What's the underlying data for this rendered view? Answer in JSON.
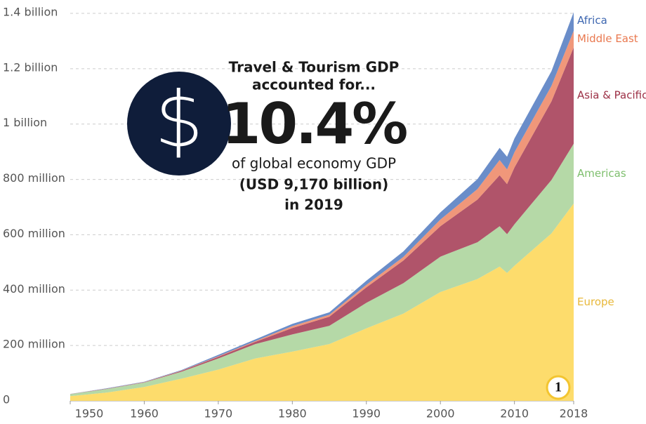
{
  "chart_data": {
    "type": "stacked_area",
    "x": [
      1950,
      1955,
      1960,
      1965,
      1970,
      1975,
      1980,
      1985,
      1990,
      1995,
      2000,
      2005,
      2008,
      2009,
      2010,
      2015,
      2018
    ],
    "series": [
      {
        "name": "Europe",
        "color": "#fddc6c",
        "label_color": "#e8b83a",
        "values": [
          17000000,
          30000000,
          50000000,
          80000000,
          113000000,
          153000000,
          178000000,
          205000000,
          262000000,
          315000000,
          393000000,
          440000000,
          485000000,
          462000000,
          488000000,
          605000000,
          713000000
        ]
      },
      {
        "name": "Americas",
        "color": "#b5d9a7",
        "label_color": "#7fbf6e",
        "values": [
          7000000,
          13000000,
          16000000,
          25000000,
          40000000,
          52000000,
          62000000,
          66000000,
          92000000,
          110000000,
          128000000,
          133000000,
          146000000,
          140000000,
          150000000,
          193000000,
          216000000
        ]
      },
      {
        "name": "Asia & Pacific",
        "color": "#b0546a",
        "label_color": "#9c2f45",
        "values": [
          500000,
          1000000,
          1000000,
          3000000,
          6000000,
          8000000,
          23000000,
          33000000,
          56000000,
          82000000,
          110000000,
          154000000,
          184000000,
          181000000,
          205000000,
          284000000,
          348000000
        ]
      },
      {
        "name": "Middle East",
        "color": "#f0977a",
        "label_color": "#e9784f",
        "values": [
          200000,
          500000,
          1000000,
          1000000,
          2000000,
          3000000,
          7000000,
          7000000,
          9000000,
          13000000,
          24000000,
          38000000,
          55000000,
          53000000,
          55000000,
          56000000,
          60000000
        ]
      },
      {
        "name": "Africa",
        "color": "#6a8dc9",
        "label_color": "#3d66b0",
        "values": [
          500000,
          1000000,
          1000000,
          2000000,
          5000000,
          6000000,
          8000000,
          9000000,
          15000000,
          20000000,
          26000000,
          36000000,
          44000000,
          46000000,
          50000000,
          53000000,
          67000000
        ]
      }
    ],
    "xlim": [
      1950,
      2018
    ],
    "xticks": [
      1950,
      1960,
      1970,
      1980,
      1990,
      2000,
      2010,
      2018
    ],
    "ylim": [
      0,
      1400000000
    ],
    "yticks": [
      0,
      {
        "value": 200000000,
        "label": "200 million"
      },
      {
        "value": 400000000,
        "label": "400 million"
      },
      {
        "value": 600000000,
        "label": "600 million"
      },
      {
        "value": 800000000,
        "label": "800 million"
      },
      {
        "value": 1000000000,
        "label": "1 billion"
      },
      {
        "value": 1200000000,
        "label": "1.2 billion"
      },
      {
        "value": 1400000000,
        "label": "1.4 billion"
      }
    ],
    "grid": true,
    "annotations": {
      "icon": "$",
      "headline_1": "Travel & Tourism GDP",
      "headline_2": "accounted for...",
      "big_value": "10.4%",
      "line_1": "of global economy GDP",
      "line_2": "(USD 9,170 billion)",
      "line_3": "in 2019",
      "badge": "1"
    }
  }
}
